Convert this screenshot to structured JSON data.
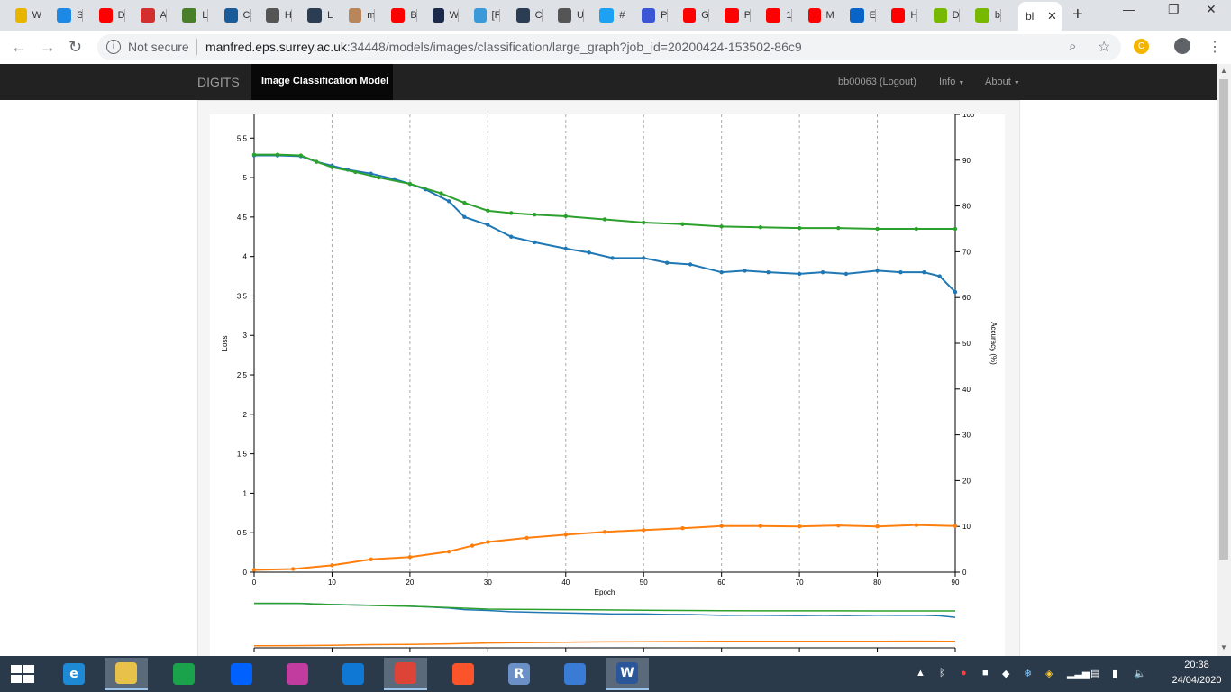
{
  "browser": {
    "tabs": [
      {
        "letter": "W",
        "icon": "app-icon",
        "color": "#e8b400"
      },
      {
        "letter": "S",
        "icon": "cloud-icon",
        "color": "#1e88e5"
      },
      {
        "letter": "D",
        "icon": "youtube-icon",
        "color": "#ff0000"
      },
      {
        "letter": "A",
        "icon": "pdf-icon",
        "color": "#d32f2f"
      },
      {
        "letter": "L",
        "icon": "app-icon",
        "color": "#4a7f2a"
      },
      {
        "letter": "C",
        "icon": "app-icon",
        "color": "#1a5c9a"
      },
      {
        "letter": "H",
        "icon": "app-icon",
        "color": "#555555"
      },
      {
        "letter": "L",
        "icon": "tds-icon",
        "color": "#2b3d52"
      },
      {
        "letter": "m",
        "icon": "app-icon",
        "color": "#b8865a"
      },
      {
        "letter": "B",
        "icon": "youtube-icon",
        "color": "#ff0000"
      },
      {
        "letter": "W",
        "icon": "app-icon",
        "color": "#1b2a4a"
      },
      {
        "letter": "[F",
        "icon": "doc-icon",
        "color": "#3a9ad9"
      },
      {
        "letter": "C",
        "icon": "tds-icon",
        "color": "#2b3d52"
      },
      {
        "letter": "U",
        "icon": "app-icon",
        "color": "#555555"
      },
      {
        "letter": "#",
        "icon": "twitter-icon",
        "color": "#1da1f2"
      },
      {
        "letter": "P",
        "icon": "app-icon",
        "color": "#3a56d4"
      },
      {
        "letter": "G",
        "icon": "youtube-icon",
        "color": "#ff0000"
      },
      {
        "letter": "P",
        "icon": "youtube-icon",
        "color": "#ff0000"
      },
      {
        "letter": "1",
        "icon": "youtube-icon",
        "color": "#ff0000"
      },
      {
        "letter": "M",
        "icon": "youtube-icon",
        "color": "#ff0000"
      },
      {
        "letter": "E",
        "icon": "outlook-icon",
        "color": "#0a64c8"
      },
      {
        "letter": "H",
        "icon": "youtube-icon",
        "color": "#ff0000"
      },
      {
        "letter": "D",
        "icon": "app-icon",
        "color": "#76b900"
      },
      {
        "letter": "b",
        "icon": "app-icon",
        "color": "#76b900"
      }
    ],
    "active_tab_title": "bl",
    "security_label": "Not secure",
    "url_host": "manfred.eps.surrey.ac.uk",
    "url_path": ":34448/models/images/classification/large_graph?job_id=20200424-153502-86c9"
  },
  "navbar": {
    "brand": "DIGITS",
    "active": "Image Classification Model",
    "user": "bb00063 (Logout)",
    "info": "Info",
    "about": "About"
  },
  "chart_data": {
    "type": "line",
    "xlabel": "Epoch",
    "ylabel_left": "Loss",
    "ylabel_right": "Accuracy (%)",
    "xlim": [
      0,
      90
    ],
    "ylim_left": [
      0,
      5.8
    ],
    "ylim_right": [
      0,
      100
    ],
    "x_ticks": [
      0,
      10,
      20,
      30,
      40,
      50,
      60,
      70,
      80,
      90
    ],
    "y_ticks_left": [
      "0",
      "0.5",
      "1",
      "1.5",
      "2",
      "2.5",
      "3",
      "3.5",
      "4",
      "4.5",
      "5",
      "5.5"
    ],
    "y_ticks_right": [
      "0",
      "10",
      "20",
      "30",
      "40",
      "50",
      "60",
      "70",
      "80",
      "90",
      "100"
    ],
    "grid_x": true,
    "series": [
      {
        "role": "train-loss",
        "axis": "left",
        "color": "#1f77b4",
        "x": [
          0,
          3,
          6,
          8,
          10,
          12,
          15,
          18,
          20,
          22,
          25,
          27,
          30,
          33,
          36,
          40,
          43,
          46,
          50,
          53,
          56,
          60,
          63,
          66,
          70,
          73,
          76,
          80,
          83,
          86,
          88,
          90
        ],
        "values": [
          5.28,
          5.28,
          5.27,
          5.2,
          5.15,
          5.1,
          5.05,
          4.98,
          4.92,
          4.85,
          4.7,
          4.5,
          4.4,
          4.25,
          4.18,
          4.1,
          4.05,
          3.98,
          3.98,
          3.92,
          3.9,
          3.8,
          3.82,
          3.8,
          3.78,
          3.8,
          3.78,
          3.82,
          3.8,
          3.8,
          3.75,
          3.55
        ]
      },
      {
        "role": "val-loss",
        "axis": "left",
        "color": "#2ca02c",
        "x": [
          0,
          3,
          6,
          8,
          10,
          13,
          16,
          20,
          24,
          27,
          30,
          33,
          36,
          40,
          45,
          50,
          55,
          60,
          65,
          70,
          75,
          80,
          85,
          90
        ],
        "values": [
          5.29,
          5.29,
          5.28,
          5.2,
          5.13,
          5.07,
          5.0,
          4.92,
          4.8,
          4.68,
          4.58,
          4.55,
          4.53,
          4.51,
          4.47,
          4.43,
          4.41,
          4.38,
          4.37,
          4.36,
          4.36,
          4.35,
          4.35,
          4.35
        ]
      },
      {
        "role": "val-accuracy",
        "axis": "right",
        "color": "#ff7f0e",
        "x": [
          0,
          5,
          10,
          15,
          20,
          25,
          28,
          30,
          35,
          40,
          45,
          50,
          55,
          60,
          65,
          70,
          75,
          80,
          85,
          90
        ],
        "values": [
          0.5,
          0.7,
          1.5,
          2.8,
          3.3,
          4.5,
          5.8,
          6.6,
          7.5,
          8.2,
          8.8,
          9.2,
          9.6,
          10.1,
          10.1,
          10.0,
          10.2,
          10.0,
          10.3,
          10.1
        ]
      }
    ]
  },
  "taskbar": {
    "apps": [
      {
        "name": "internet-explorer-icon",
        "glyph": "e",
        "color": "#1e8ad6"
      },
      {
        "name": "file-explorer-icon",
        "glyph": "",
        "color": "#e8c14a"
      },
      {
        "name": "store-icon",
        "glyph": "",
        "color": "#1aa34a"
      },
      {
        "name": "dropbox-icon",
        "glyph": "",
        "color": "#0061fe"
      },
      {
        "name": "app-icon",
        "glyph": "",
        "color": "#c23b9e"
      },
      {
        "name": "onedrive-icon",
        "glyph": "",
        "color": "#0f78d4"
      },
      {
        "name": "chrome-icon",
        "glyph": "",
        "color": "#db4437"
      },
      {
        "name": "brave-icon",
        "glyph": "",
        "color": "#fb542b"
      },
      {
        "name": "r-icon",
        "glyph": "R",
        "color": "#6b8fc7"
      },
      {
        "name": "globe-icon",
        "glyph": "",
        "color": "#3a7bd5"
      },
      {
        "name": "word-icon",
        "glyph": "W",
        "color": "#2b579a"
      }
    ],
    "time": "20:38",
    "date": "24/04/2020"
  }
}
